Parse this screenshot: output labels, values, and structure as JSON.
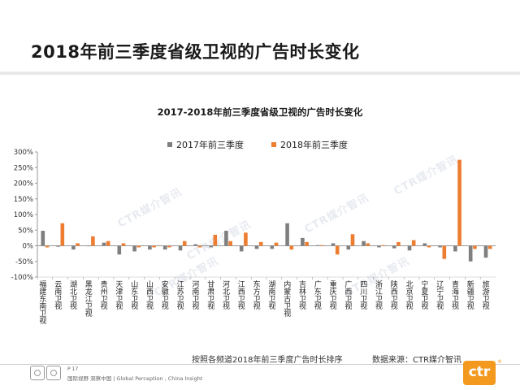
{
  "page": {
    "title": "2018年前三季度省级卫视的广告时长变化"
  },
  "footer": {
    "caption": "按照各频道2018年前三季度广告时长排序",
    "source": "数据来源：CTR媒介智讯",
    "page_number": "P 17",
    "tagline": "国际视野 洞察中国 | Global Perception , China Insight",
    "logo_text": "ctr",
    "watermark": "CTR媒介智讯"
  },
  "colors": {
    "series_2017": "#7f7f7f",
    "series_2018": "#ed7d31",
    "logo": "#f39a1e"
  },
  "chart_data": {
    "type": "bar",
    "title": "2017-2018年前三季度省级卫视的广告时长变化",
    "xlabel": "",
    "ylabel": "",
    "ylim": [
      -100,
      300
    ],
    "yticks": [
      "300%",
      "250%",
      "200%",
      "150%",
      "100%",
      "50%",
      "0%",
      "-50%",
      "-100%"
    ],
    "legend_position": "top",
    "grid": false,
    "categories": [
      "福建东南卫视",
      "云南卫视",
      "湖北卫视",
      "黑龙江卫视",
      "贵州卫视",
      "天津卫视",
      "山东卫视",
      "山西卫视",
      "安徽卫视",
      "江苏卫视",
      "河南卫视",
      "甘肃卫视",
      "河北卫视",
      "江西卫视",
      "东方卫视",
      "湖南卫视",
      "内蒙古卫视",
      "吉林卫视",
      "广东卫视",
      "重庆卫视",
      "广西卫视",
      "四川卫视",
      "浙江卫视",
      "陕西卫视",
      "北京卫视",
      "宁夏卫视",
      "辽宁卫视",
      "青海卫视",
      "新疆卫视",
      "旅游卫视"
    ],
    "series": [
      {
        "name": "2017年前三季度",
        "values": [
          48,
          -3,
          -12,
          0,
          10,
          -28,
          -18,
          -12,
          -12,
          -15,
          5,
          -5,
          48,
          -18,
          -10,
          -10,
          72,
          25,
          2,
          8,
          -12,
          15,
          -5,
          -8,
          -15,
          8,
          -5,
          -18,
          -50,
          -38
        ]
      },
      {
        "name": "2018年前三季度",
        "values": [
          -5,
          72,
          8,
          30,
          15,
          8,
          -5,
          -5,
          -5,
          15,
          -5,
          35,
          15,
          42,
          12,
          10,
          -12,
          12,
          2,
          -28,
          37,
          8,
          2,
          12,
          18,
          -5,
          -42,
          275,
          -10,
          -10
        ]
      }
    ]
  }
}
